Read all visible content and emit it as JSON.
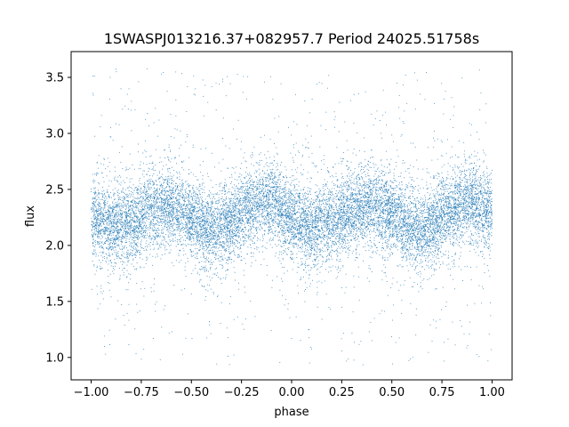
{
  "chart_data": {
    "type": "scatter",
    "title": "1SWASPJ013216.37+082957.7 Period 24025.51758s",
    "xlabel": "phase",
    "ylabel": "flux",
    "xlim": [
      -1.1,
      1.1
    ],
    "ylim": [
      0.8,
      3.73
    ],
    "xticks": [
      -1.0,
      -0.75,
      -0.5,
      -0.25,
      0.0,
      0.25,
      0.5,
      0.75,
      1.0
    ],
    "xtick_labels": [
      "−1.00",
      "−0.75",
      "−0.50",
      "−0.25",
      "0.00",
      "0.25",
      "0.50",
      "0.75",
      "1.00"
    ],
    "yticks": [
      1.0,
      1.5,
      2.0,
      2.5,
      3.0,
      3.5
    ],
    "ytick_labels": [
      "1.0",
      "1.5",
      "2.0",
      "2.5",
      "3.0",
      "3.5"
    ],
    "grid": false,
    "legend": "none",
    "series": [
      {
        "color": "#1f77b4",
        "point_count_estimate": 26000,
        "phase_range": [
          -1.0,
          1.0
        ],
        "median_curve": {
          "x": [
            -1.0,
            -0.9,
            -0.8,
            -0.7,
            -0.6,
            -0.5,
            -0.4,
            -0.3,
            -0.2,
            -0.15,
            -0.1,
            0.0,
            0.1,
            0.2,
            0.3,
            0.4,
            0.5,
            0.6,
            0.65,
            0.7,
            0.8,
            0.85,
            0.9,
            1.0
          ],
          "y": [
            2.24,
            2.17,
            2.2,
            2.33,
            2.35,
            2.24,
            2.13,
            2.2,
            2.35,
            2.4,
            2.38,
            2.25,
            2.15,
            2.22,
            2.32,
            2.36,
            2.28,
            2.15,
            2.12,
            2.18,
            2.32,
            2.38,
            2.39,
            2.3
          ]
        },
        "core_spread": 0.17,
        "outlier_range": [
          0.93,
          3.6
        ]
      }
    ]
  }
}
